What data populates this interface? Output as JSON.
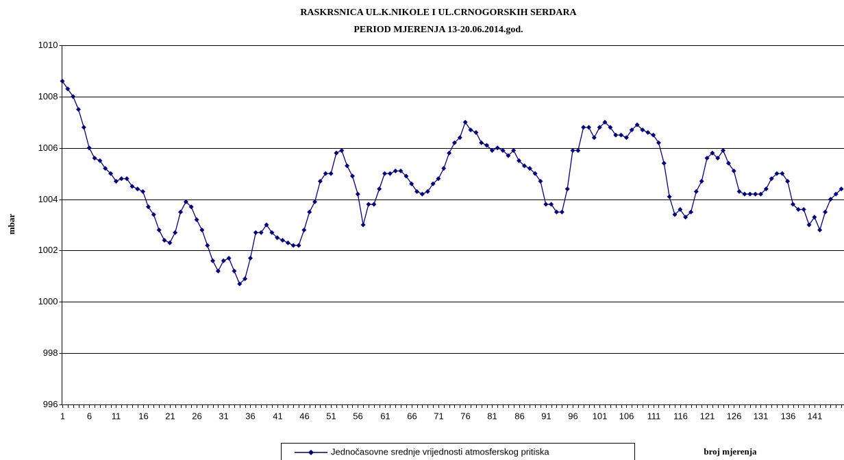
{
  "chart_data": {
    "type": "line",
    "title": "RASKRSNICA UL.K.NIKOLE I UL.CRNOGORSKIH SERDARA",
    "subtitle": "PERIOD MJERENJA 13-20.06.2014.god.",
    "y_label": "mbar",
    "x_label": "broj mjerenja",
    "categories": [
      1,
      null,
      null,
      null,
      null,
      6,
      null,
      null,
      null,
      null,
      11,
      null,
      null,
      null,
      null,
      16,
      null,
      null,
      null,
      null,
      21,
      null,
      null,
      null,
      null,
      26,
      null,
      null,
      null,
      null,
      31,
      null,
      null,
      null,
      null,
      36,
      null,
      null,
      null,
      null,
      41,
      null,
      null,
      null,
      null,
      46,
      null,
      null,
      null,
      null,
      51,
      null,
      null,
      null,
      null,
      56,
      null,
      null,
      null,
      null,
      61,
      null,
      null,
      null,
      null,
      66,
      null,
      null,
      null,
      null,
      71,
      null,
      null,
      null,
      null,
      76,
      null,
      null,
      null,
      null,
      81,
      null,
      null,
      null,
      null,
      86,
      null,
      null,
      null,
      null,
      91,
      null,
      null,
      null,
      null,
      96,
      null,
      null,
      null,
      null,
      101,
      null,
      null,
      null,
      null,
      106,
      null,
      null,
      null,
      null,
      111,
      null,
      null,
      null,
      null,
      116,
      null,
      null,
      null,
      null,
      121,
      null,
      null,
      null,
      null,
      126,
      null,
      null,
      null,
      null,
      131,
      null,
      null,
      null,
      null,
      136,
      null,
      null,
      null,
      null,
      141,
      null,
      null,
      null,
      null,
      null
    ],
    "series": [
      {
        "name": "Jednočasovne srednje vrijednosti atmosferskog pritiska",
        "color": "#000080",
        "values": [
          1008.6,
          1008.3,
          1008.0,
          1007.5,
          1006.8,
          1006.0,
          1005.6,
          1005.5,
          1005.2,
          1005.0,
          1004.7,
          1004.8,
          1004.8,
          1004.5,
          1004.4,
          1004.3,
          1003.7,
          1003.4,
          1002.8,
          1002.4,
          1002.3,
          1002.7,
          1003.5,
          1003.9,
          1003.7,
          1003.2,
          1002.8,
          1002.2,
          1001.6,
          1001.2,
          1001.6,
          1001.7,
          1001.2,
          1000.7,
          1000.9,
          1001.7,
          1002.7,
          1002.7,
          1003.0,
          1002.7,
          1002.5,
          1002.4,
          1002.3,
          1002.2,
          1002.2,
          1002.8,
          1003.5,
          1003.9,
          1004.7,
          1005.0,
          1005.0,
          1005.8,
          1005.9,
          1005.3,
          1004.9,
          1004.2,
          1003.0,
          1003.8,
          1003.8,
          1004.4,
          1005.0,
          1005.0,
          1005.1,
          1005.1,
          1004.9,
          1004.6,
          1004.3,
          1004.2,
          1004.3,
          1004.6,
          1004.8,
          1005.2,
          1005.8,
          1006.2,
          1006.4,
          1007.0,
          1006.7,
          1006.6,
          1006.2,
          1006.1,
          1005.9,
          1006.0,
          1005.9,
          1005.7,
          1005.9,
          1005.5,
          1005.3,
          1005.2,
          1005.0,
          1004.7,
          1003.8,
          1003.8,
          1003.5,
          1003.5,
          1004.4,
          1005.9,
          1005.9,
          1006.8,
          1006.8,
          1006.4,
          1006.8,
          1007.0,
          1006.8,
          1006.5,
          1006.5,
          1006.4,
          1006.7,
          1006.9,
          1006.7,
          1006.6,
          1006.5,
          1006.2,
          1005.4,
          1004.1,
          1003.4,
          1003.6,
          1003.3,
          1003.5,
          1004.3,
          1004.7,
          1005.6,
          1005.8,
          1005.6,
          1005.9,
          1005.4,
          1005.1,
          1004.3,
          1004.2,
          1004.2,
          1004.2,
          1004.2,
          1004.4,
          1004.8,
          1005.0,
          1005.0,
          1004.7,
          1003.8,
          1003.6,
          1003.6,
          1003.0,
          1003.3,
          1002.8,
          1003.5,
          1004.0,
          1004.2,
          1004.4
        ]
      }
    ],
    "ylim": [
      996,
      1010
    ],
    "yticks": [
      996,
      998,
      1000,
      1002,
      1004,
      1006,
      1008,
      1010
    ],
    "grid": true
  }
}
